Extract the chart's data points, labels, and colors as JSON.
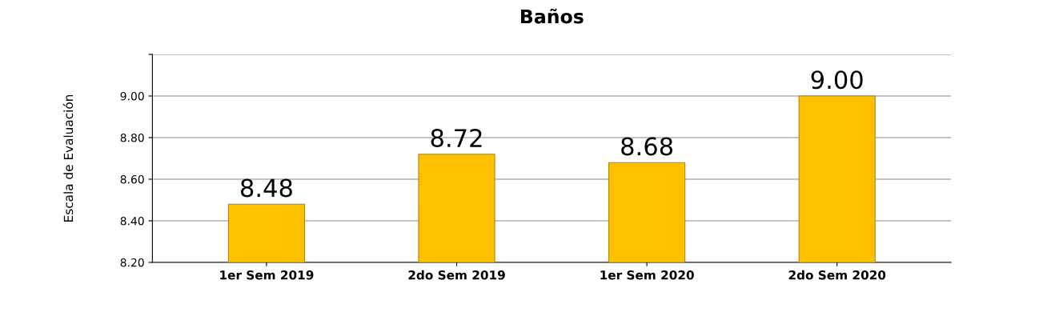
{
  "chart_data": {
    "type": "bar",
    "title": "Baños",
    "ylabel": "Escala de Evaluación",
    "categories": [
      "1er Sem 2019",
      "2do Sem 2019",
      "1er Sem 2020",
      "2do Sem 2020"
    ],
    "values": [
      8.48,
      8.72,
      8.68,
      9.0
    ],
    "color": "#ffc000",
    "value_labels": [
      "8.48",
      "8.72",
      "8.68",
      "9.00"
    ],
    "ylim": [
      8.2,
      9.2
    ],
    "yticks": [
      {
        "value": 8.2,
        "label": "8.20"
      },
      {
        "value": 8.4,
        "label": "8.40"
      },
      {
        "value": 8.6,
        "label": "8.60"
      },
      {
        "value": 8.8,
        "label": "8.80"
      },
      {
        "value": 9.0,
        "label": "9.00"
      },
      {
        "value": 9.2,
        "label": null
      }
    ],
    "grid": "y",
    "legend": false
  }
}
